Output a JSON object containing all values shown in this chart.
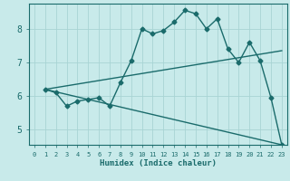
{
  "title": "",
  "xlabel": "Humidex (Indice chaleur)",
  "ylabel": "",
  "bg_color": "#c8eaea",
  "line_color": "#1a6b6b",
  "grid_color": "#a8d4d4",
  "xlim": [
    -0.5,
    23.5
  ],
  "ylim": [
    4.55,
    8.75
  ],
  "xticks": [
    0,
    1,
    2,
    3,
    4,
    5,
    6,
    7,
    8,
    9,
    10,
    11,
    12,
    13,
    14,
    15,
    16,
    17,
    18,
    19,
    20,
    21,
    22,
    23
  ],
  "yticks": [
    5,
    6,
    7,
    8
  ],
  "series1_x": [
    1,
    2,
    3,
    4,
    5,
    6,
    7,
    8,
    9,
    10,
    11,
    12,
    13,
    14,
    15,
    16,
    17,
    18,
    19,
    20,
    21,
    22,
    23
  ],
  "series1_y": [
    6.2,
    6.1,
    5.7,
    5.85,
    5.9,
    5.95,
    5.7,
    6.4,
    7.05,
    8.0,
    7.85,
    7.95,
    8.2,
    8.55,
    8.45,
    8.0,
    8.3,
    7.4,
    7.0,
    7.6,
    7.05,
    5.95,
    4.55
  ],
  "series2_x": [
    1,
    23
  ],
  "series2_y": [
    6.2,
    7.35
  ],
  "series3_x": [
    1,
    23
  ],
  "series3_y": [
    6.2,
    4.55
  ],
  "marker_size": 2.5,
  "linewidth": 1.0
}
